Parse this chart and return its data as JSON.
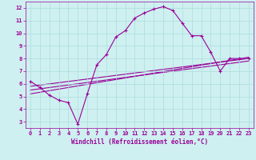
{
  "xlabel": "Windchill (Refroidissement éolien,°C)",
  "ylabel": "",
  "bg_color": "#cff0f0",
  "grid_color": "#aadddd",
  "line_color": "#990099",
  "xlim": [
    -0.5,
    23.5
  ],
  "ylim": [
    2.5,
    12.5
  ],
  "xticks": [
    0,
    1,
    2,
    3,
    4,
    5,
    6,
    7,
    8,
    9,
    10,
    11,
    12,
    13,
    14,
    15,
    16,
    17,
    18,
    19,
    20,
    21,
    22,
    23
  ],
  "yticks": [
    3,
    4,
    5,
    6,
    7,
    8,
    9,
    10,
    11,
    12
  ],
  "line1_x": [
    0,
    1,
    2,
    3,
    4,
    5,
    6,
    7,
    8,
    9,
    10,
    11,
    12,
    13,
    14,
    15,
    16,
    17,
    18,
    19,
    20,
    21,
    22,
    23
  ],
  "line1_y": [
    6.2,
    5.7,
    5.1,
    4.7,
    4.5,
    2.8,
    5.2,
    7.5,
    8.3,
    9.7,
    10.2,
    11.2,
    11.6,
    11.9,
    12.1,
    11.8,
    10.8,
    9.8,
    9.8,
    8.5,
    7.0,
    8.0,
    8.0,
    8.0
  ],
  "line2_x": [
    0,
    23
  ],
  "line2_y": [
    5.2,
    8.1
  ],
  "line3_x": [
    0,
    23
  ],
  "line3_y": [
    5.5,
    7.8
  ],
  "line4_x": [
    0,
    23
  ],
  "line4_y": [
    5.8,
    8.0
  ],
  "tick_fontsize": 5.0,
  "label_fontsize": 5.5,
  "lw": 0.8,
  "marker_size": 3.5,
  "marker_ew": 0.8
}
